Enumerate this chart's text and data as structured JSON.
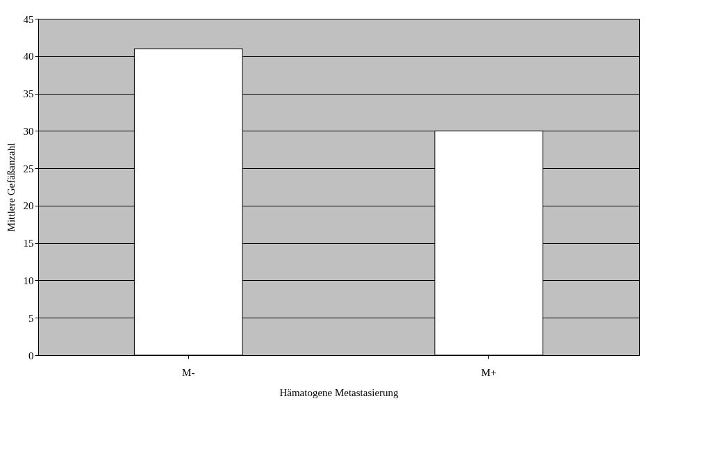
{
  "chart_data": {
    "type": "bar",
    "xlabel": "Hämatogene Metastasierung",
    "ylabel": "Mittlere Gefäßanzahl",
    "categories": [
      "M-",
      "M+"
    ],
    "series": [
      {
        "color": "#ffffff",
        "values": [
          41,
          30
        ]
      }
    ],
    "ylim": [
      0,
      45
    ],
    "yticks": [
      0,
      5,
      10,
      15,
      20,
      25,
      30,
      35,
      40,
      45
    ],
    "grid": "y"
  }
}
